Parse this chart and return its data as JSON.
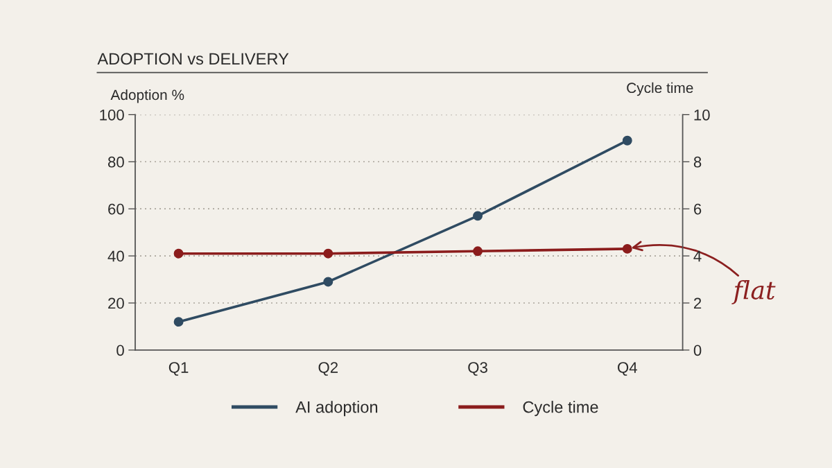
{
  "chart_data": {
    "type": "line",
    "title": "ADOPTION vs DELIVERY",
    "ylabel": "Adoption %",
    "y2label": "Cycle time",
    "categories": [
      "Q1",
      "Q2",
      "Q3",
      "Q4"
    ],
    "series": [
      {
        "name": "AI adoption",
        "color": "#2f4b62",
        "values": [
          12,
          29,
          57,
          89
        ]
      },
      {
        "name": "Cycle time",
        "color": "#8b1c1c",
        "values": [
          4.1,
          4.1,
          4.2,
          4.3
        ],
        "axis": "y2"
      }
    ],
    "ylim": [
      0,
      100
    ],
    "yticks": [
      0,
      20,
      40,
      60,
      80,
      100
    ],
    "y2lim": [
      0,
      10
    ],
    "y2ticks": [
      0,
      2,
      4,
      6,
      8,
      10
    ],
    "grid": "y",
    "legend": "bottom",
    "marker": "circle",
    "line_style": "solid",
    "annotations": [
      {
        "text": "flat",
        "x": "Q4",
        "y": 43
      }
    ]
  }
}
